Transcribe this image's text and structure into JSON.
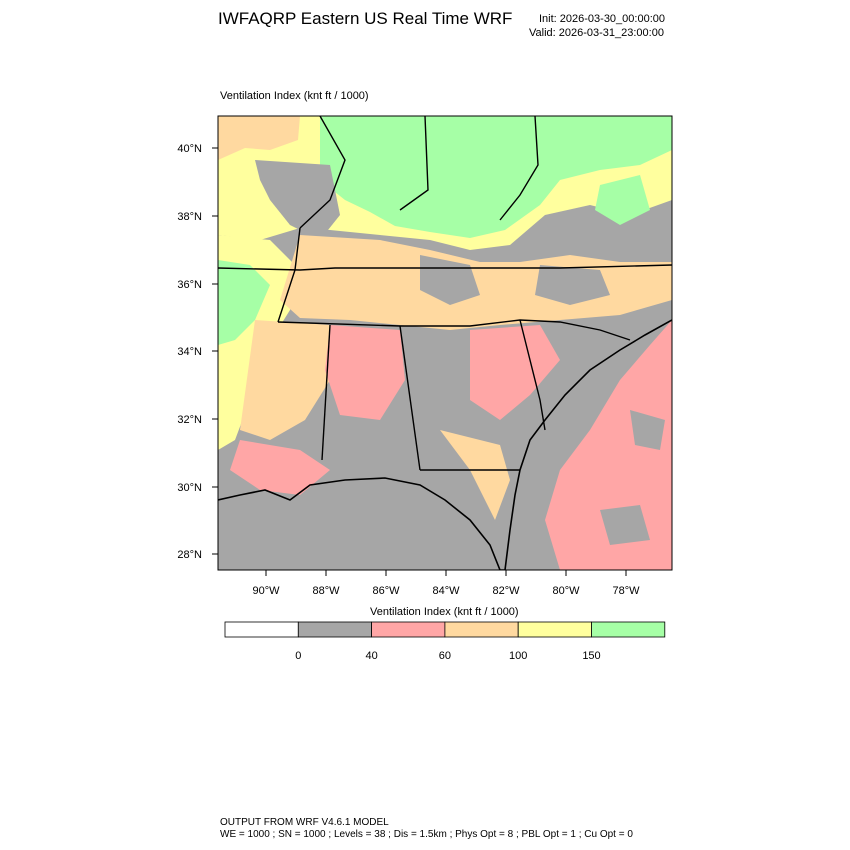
{
  "header": {
    "title": "IWFAQRP Eastern US Real Time WRF",
    "init": "Init: 2026-03-30_00:00:00",
    "valid": "Valid: 2026-03-31_23:00:00"
  },
  "map": {
    "variable_label": "Ventilation Index   (knt ft / 1000)",
    "lat_labels": [
      "40°N",
      "38°N",
      "36°N",
      "34°N",
      "32°N",
      "30°N",
      "28°N"
    ],
    "lon_labels": [
      "90°W",
      "88°W",
      "86°W",
      "84°W",
      "82°W",
      "80°W",
      "78°W"
    ],
    "colors": {
      "white": "#ffffff",
      "gray": "#a6a6a6",
      "pink": "#ffa6a6",
      "tan": "#ffd9a0",
      "yellow": "#ffff9e",
      "green": "#a6ffa6",
      "border": "#000000"
    }
  },
  "colorbar": {
    "title": "Ventilation Index  (knt ft / 1000)",
    "tick_labels": [
      "0",
      "40",
      "60",
      "100",
      "150"
    ],
    "bin_colors": [
      "#ffffff",
      "#a6a6a6",
      "#ffa6a6",
      "#ffd9a0",
      "#ffff9e",
      "#a6ffa6"
    ]
  },
  "footer": {
    "line1": "OUTPUT FROM WRF V4.6.1 MODEL",
    "line2": "WE = 1000 ; SN = 1000 ; Levels = 38 ; Dis = 1.5km ; Phys Opt = 8 ; PBL Opt = 1 ; Cu Opt = 0"
  }
}
